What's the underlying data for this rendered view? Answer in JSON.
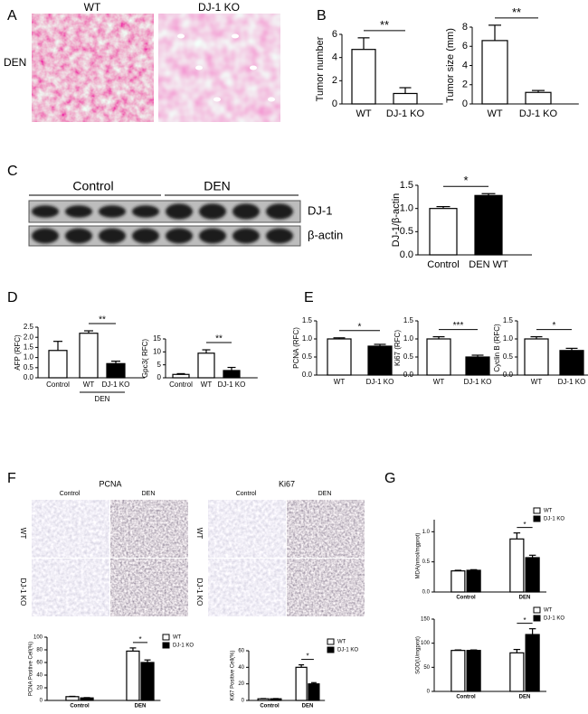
{
  "panel_labels": [
    "A",
    "B",
    "C",
    "D",
    "E",
    "F",
    "G"
  ],
  "images": {
    "A": {
      "columns": [
        "WT",
        "DJ-1 KO"
      ],
      "row": "DEN"
    },
    "C": {
      "groups": [
        "Control",
        "DEN"
      ],
      "rows": [
        "DJ-1",
        "β-actin"
      ]
    },
    "F": [
      {
        "title": "PCNA",
        "columns": [
          "Control",
          "DEN"
        ],
        "rows": [
          "WT",
          "DJ-1 KO"
        ]
      },
      {
        "title": "Ki67",
        "columns": [
          "Control",
          "DEN"
        ],
        "rows": [
          "WT",
          "DJ-1 KO"
        ]
      }
    ]
  },
  "chart_data": [
    {
      "type": "bar",
      "ylabel": "Tumor number",
      "categories": [
        "WT",
        "DJ-1 KO"
      ],
      "values": [
        4.7,
        0.9
      ],
      "errors": [
        1.0,
        0.5
      ],
      "colors": [
        "#ffffff",
        "#ffffff"
      ],
      "ylim": [
        0,
        6
      ],
      "yticks": [
        0,
        2,
        4,
        6
      ],
      "significance": "**"
    },
    {
      "type": "bar",
      "ylabel": "Tumor size (mm)",
      "categories": [
        "WT",
        "DJ-1 KO"
      ],
      "values": [
        6.6,
        1.2
      ],
      "errors": [
        1.6,
        0.2
      ],
      "colors": [
        "#ffffff",
        "#ffffff"
      ],
      "ylim": [
        0,
        8
      ],
      "yticks": [
        0,
        2,
        4,
        6,
        8
      ],
      "significance": "**"
    },
    {
      "type": "bar",
      "ylabel": "DJ-1/β-actin",
      "categories": [
        "Control",
        "DEN WT"
      ],
      "values": [
        1.0,
        1.28
      ],
      "errors": [
        0.04,
        0.04
      ],
      "colors": [
        "#ffffff",
        "#000000"
      ],
      "ylim": [
        0,
        1.5
      ],
      "yticks": [
        {
          "value": 0,
          "label": "0.0"
        },
        {
          "value": 0.5,
          "label": "0.5"
        },
        {
          "value": 1,
          "label": "1.0"
        },
        {
          "value": 1.5,
          "label": "1.5"
        }
      ],
      "significance": "*"
    },
    {
      "type": "bar",
      "ylabel": "AFP (RFC)",
      "categories": [
        "Control",
        "WT",
        "DJ-1 KO"
      ],
      "values": [
        1.35,
        2.2,
        0.7
      ],
      "errors": [
        0.45,
        0.12,
        0.12
      ],
      "colors": [
        "#ffffff",
        "#ffffff",
        "#000000"
      ],
      "ylim": [
        0,
        2.5
      ],
      "yticks": [
        {
          "value": 0,
          "label": "0.0"
        },
        {
          "value": 0.5,
          "label": "0.5"
        },
        {
          "value": 1,
          "label": "1.0"
        },
        {
          "value": 1.5,
          "label": "1.5"
        },
        {
          "value": 2,
          "label": "2.0"
        },
        {
          "value": 2.5,
          "label": "2.5"
        }
      ],
      "significance": "**",
      "subgroup": "DEN"
    },
    {
      "type": "bar",
      "ylabel": "Gpc3( RFC)",
      "categories": [
        "Control",
        "WT",
        "DJ-1 KO"
      ],
      "values": [
        1.3,
        9.5,
        2.8
      ],
      "errors": [
        0.3,
        1.3,
        1.2
      ],
      "colors": [
        "#ffffff",
        "#ffffff",
        "#000000"
      ],
      "ylim": [
        0,
        15
      ],
      "yticks": [
        0,
        5,
        10,
        15
      ],
      "significance": "**"
    },
    {
      "type": "bar",
      "ylabel": "PCNA (RFC)",
      "categories": [
        "WT",
        "DJ-1 KO"
      ],
      "values": [
        1.0,
        0.8
      ],
      "errors": [
        0.03,
        0.05
      ],
      "colors": [
        "#ffffff",
        "#000000"
      ],
      "ylim": [
        0,
        1.5
      ],
      "yticks": [
        {
          "value": 0,
          "label": "0.0"
        },
        {
          "value": 0.5,
          "label": "0.5"
        },
        {
          "value": 1,
          "label": "1.0"
        },
        {
          "value": 1.5,
          "label": "1.5"
        }
      ],
      "significance": "*"
    },
    {
      "type": "bar",
      "ylabel": "Ki67 (RFC)",
      "categories": [
        "WT",
        "DJ-1 KO"
      ],
      "values": [
        1.0,
        0.5
      ],
      "errors": [
        0.06,
        0.05
      ],
      "colors": [
        "#ffffff",
        "#000000"
      ],
      "ylim": [
        0,
        1.5
      ],
      "yticks": [
        {
          "value": 0,
          "label": "0.0"
        },
        {
          "value": 0.5,
          "label": "0.5"
        },
        {
          "value": 1,
          "label": "1.0"
        },
        {
          "value": 1.5,
          "label": "1.5"
        }
      ],
      "significance": "***"
    },
    {
      "type": "bar",
      "ylabel": "Cyclin B (RFC)",
      "categories": [
        "WT",
        "DJ-1 KO"
      ],
      "values": [
        1.0,
        0.68
      ],
      "errors": [
        0.06,
        0.06
      ],
      "colors": [
        "#ffffff",
        "#000000"
      ],
      "ylim": [
        0,
        1.5
      ],
      "yticks": [
        {
          "value": 0,
          "label": "0.0"
        },
        {
          "value": 0.5,
          "label": "0.5"
        },
        {
          "value": 1,
          "label": "1.0"
        },
        {
          "value": 1.5,
          "label": "1.5"
        }
      ],
      "significance": "*"
    },
    {
      "type": "grouped-bar",
      "ylabel": "PCNA Positive Cell(%)",
      "categories": [
        "Control",
        "DEN"
      ],
      "series": [
        {
          "name": "WT",
          "color": "#ffffff",
          "values": [
            6,
            78
          ],
          "errors": [
            0.5,
            5
          ]
        },
        {
          "name": "DJ-1 KO",
          "color": "#000000",
          "values": [
            4,
            60
          ],
          "errors": [
            0.5,
            4
          ]
        }
      ],
      "ylim": [
        0,
        100
      ],
      "yticks": [
        0,
        20,
        40,
        60,
        80,
        100
      ],
      "significance": "*"
    },
    {
      "type": "grouped-bar",
      "ylabel": "Ki67 Positive Cell(%)",
      "categories": [
        "Control",
        "DEN"
      ],
      "series": [
        {
          "name": "WT",
          "color": "#ffffff",
          "values": [
            2,
            40
          ],
          "errors": [
            0.3,
            3
          ]
        },
        {
          "name": "DJ-1 KO",
          "color": "#000000",
          "values": [
            2,
            20
          ],
          "errors": [
            0.3,
            1.5
          ]
        }
      ],
      "ylim": [
        0,
        60
      ],
      "yticks": [
        0,
        20,
        40,
        60
      ],
      "significance": "*"
    },
    {
      "type": "grouped-bar",
      "ylabel": "MDA(nmol/mgprot)",
      "categories": [
        "Control",
        "DEN"
      ],
      "series": [
        {
          "name": "WT",
          "color": "#ffffff",
          "values": [
            0.35,
            0.88
          ],
          "errors": [
            0.01,
            0.1
          ]
        },
        {
          "name": "DJ-1 KO",
          "color": "#000000",
          "values": [
            0.36,
            0.57
          ],
          "errors": [
            0.01,
            0.04
          ]
        }
      ],
      "ylim": [
        0,
        1.2
      ],
      "yticks": [
        {
          "value": 0,
          "label": "0.0"
        },
        {
          "value": 0.5,
          "label": "0.5"
        },
        {
          "value": 1,
          "label": "1.0"
        }
      ],
      "significance": "*"
    },
    {
      "type": "grouped-bar",
      "ylabel": "SOD(U/mgprot)",
      "categories": [
        "Control",
        "DEN"
      ],
      "series": [
        {
          "name": "WT",
          "color": "#ffffff",
          "values": [
            85,
            80
          ],
          "errors": [
            1,
            7
          ]
        },
        {
          "name": "DJ-1 KO",
          "color": "#000000",
          "values": [
            85,
            118
          ],
          "errors": [
            1,
            12
          ]
        }
      ],
      "ylim": [
        0,
        150
      ],
      "yticks": [
        0,
        50,
        100,
        150
      ],
      "significance": "*"
    }
  ]
}
